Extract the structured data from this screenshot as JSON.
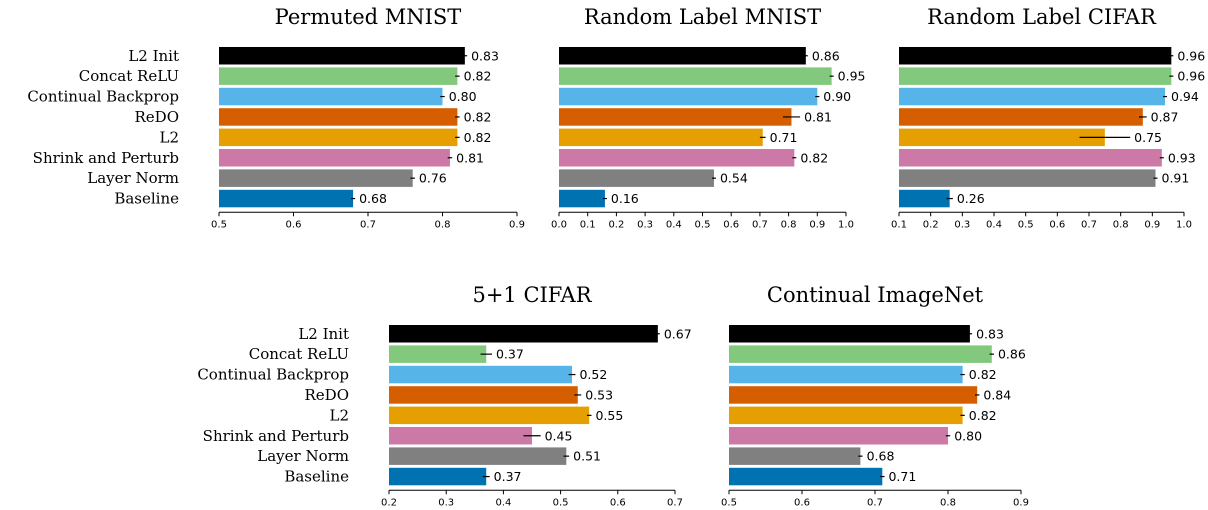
{
  "chart_data": [
    {
      "type": "bar",
      "orientation": "horizontal",
      "title": "Permuted MNIST",
      "categories": [
        "L2 Init",
        "Concat ReLU",
        "Continual Backprop",
        "ReDO",
        "L2",
        "Shrink and Perturb",
        "Layer Norm",
        "Baseline"
      ],
      "values": [
        0.83,
        0.82,
        0.8,
        0.82,
        0.82,
        0.81,
        0.76,
        0.68
      ],
      "value_labels": [
        "0.83",
        "0.82",
        "0.80",
        "0.82",
        "0.82",
        "0.81",
        "0.76",
        "0.68"
      ],
      "errors": [
        0.003,
        0.003,
        0.003,
        0.003,
        0.003,
        0.003,
        0.003,
        0.002
      ],
      "xlim": [
        0.5,
        0.9
      ],
      "xticks": [
        0.5,
        0.6,
        0.7,
        0.8,
        0.9
      ],
      "xtick_labels": [
        "0.5",
        "0.6",
        "0.7",
        "0.8",
        "0.9"
      ],
      "show_category_labels": true
    },
    {
      "type": "bar",
      "orientation": "horizontal",
      "title": "Random Label MNIST",
      "categories": [
        "L2 Init",
        "Concat ReLU",
        "Continual Backprop",
        "ReDO",
        "L2",
        "Shrink and Perturb",
        "Layer Norm",
        "Baseline"
      ],
      "values": [
        0.86,
        0.95,
        0.9,
        0.81,
        0.71,
        0.82,
        0.54,
        0.16
      ],
      "value_labels": [
        "0.86",
        "0.95",
        "0.90",
        "0.81",
        "0.71",
        "0.82",
        "0.54",
        "0.16"
      ],
      "errors": [
        0.004,
        0.004,
        0.004,
        0.03,
        0.01,
        0.006,
        0.005,
        0.005
      ],
      "xlim": [
        0.0,
        1.0
      ],
      "xticks": [
        0.0,
        0.1,
        0.2,
        0.3,
        0.4,
        0.5,
        0.6,
        0.7,
        0.8,
        0.9,
        1.0
      ],
      "xtick_labels": [
        "0.0",
        "0.1",
        "0.2",
        "0.3",
        "0.4",
        "0.5",
        "0.6",
        "0.7",
        "0.8",
        "0.9",
        "1.0"
      ],
      "show_category_labels": false
    },
    {
      "type": "bar",
      "orientation": "horizontal",
      "title": "Random Label CIFAR",
      "categories": [
        "L2 Init",
        "Concat ReLU",
        "Continual Backprop",
        "ReDO",
        "L2",
        "Shrink and Perturb",
        "Layer Norm",
        "Baseline"
      ],
      "values": [
        0.96,
        0.96,
        0.94,
        0.87,
        0.75,
        0.93,
        0.91,
        0.26
      ],
      "value_labels": [
        "0.96",
        "0.96",
        "0.94",
        "0.87",
        "0.75",
        "0.93",
        "0.91",
        "0.26"
      ],
      "errors": [
        0.004,
        0.004,
        0.004,
        0.012,
        0.08,
        0.004,
        0.004,
        0.01
      ],
      "xlim": [
        0.1,
        1.0
      ],
      "xticks": [
        0.1,
        0.2,
        0.3,
        0.4,
        0.5,
        0.6,
        0.7,
        0.8,
        0.9,
        1.0
      ],
      "xtick_labels": [
        "0.1",
        "0.2",
        "0.3",
        "0.4",
        "0.5",
        "0.6",
        "0.7",
        "0.8",
        "0.9",
        "1.0"
      ],
      "show_category_labels": false
    },
    {
      "type": "bar",
      "orientation": "horizontal",
      "title": "5+1 CIFAR",
      "categories": [
        "L2 Init",
        "Concat ReLU",
        "Continual Backprop",
        "ReDO",
        "L2",
        "Shrink and Perturb",
        "Layer Norm",
        "Baseline"
      ],
      "values": [
        0.67,
        0.37,
        0.52,
        0.53,
        0.55,
        0.45,
        0.51,
        0.37
      ],
      "value_labels": [
        "0.67",
        "0.37",
        "0.52",
        "0.53",
        "0.55",
        "0.45",
        "0.51",
        "0.37"
      ],
      "errors": [
        0.003,
        0.01,
        0.006,
        0.006,
        0.004,
        0.015,
        0.005,
        0.006
      ],
      "xlim": [
        0.2,
        0.7
      ],
      "xticks": [
        0.2,
        0.3,
        0.4,
        0.5,
        0.6,
        0.7
      ],
      "xtick_labels": [
        "0.2",
        "0.3",
        "0.4",
        "0.5",
        "0.6",
        "0.7"
      ],
      "show_category_labels": true
    },
    {
      "type": "bar",
      "orientation": "horizontal",
      "title": "Continual ImageNet",
      "categories": [
        "L2 Init",
        "Concat ReLU",
        "Continual Backprop",
        "ReDO",
        "L2",
        "Shrink and Perturb",
        "Layer Norm",
        "Baseline"
      ],
      "values": [
        0.83,
        0.86,
        0.82,
        0.84,
        0.82,
        0.8,
        0.68,
        0.71
      ],
      "value_labels": [
        "0.83",
        "0.86",
        "0.82",
        "0.84",
        "0.82",
        "0.80",
        "0.68",
        "0.71"
      ],
      "errors": [
        0.003,
        0.003,
        0.003,
        0.003,
        0.003,
        0.003,
        0.003,
        0.003
      ],
      "xlim": [
        0.5,
        0.9
      ],
      "xticks": [
        0.5,
        0.6,
        0.7,
        0.8,
        0.9
      ],
      "xtick_labels": [
        "0.5",
        "0.6",
        "0.7",
        "0.8",
        "0.9"
      ],
      "show_category_labels": false
    }
  ],
  "colors": {
    "L2 Init": "#000000",
    "Concat ReLU": "#82c97e",
    "Continual Backprop": "#56b4e9",
    "ReDO": "#d55e00",
    "L2": "#e69f00",
    "Shrink and Perturb": "#cc79a7",
    "Layer Norm": "#808080",
    "Baseline": "#0072b2"
  }
}
